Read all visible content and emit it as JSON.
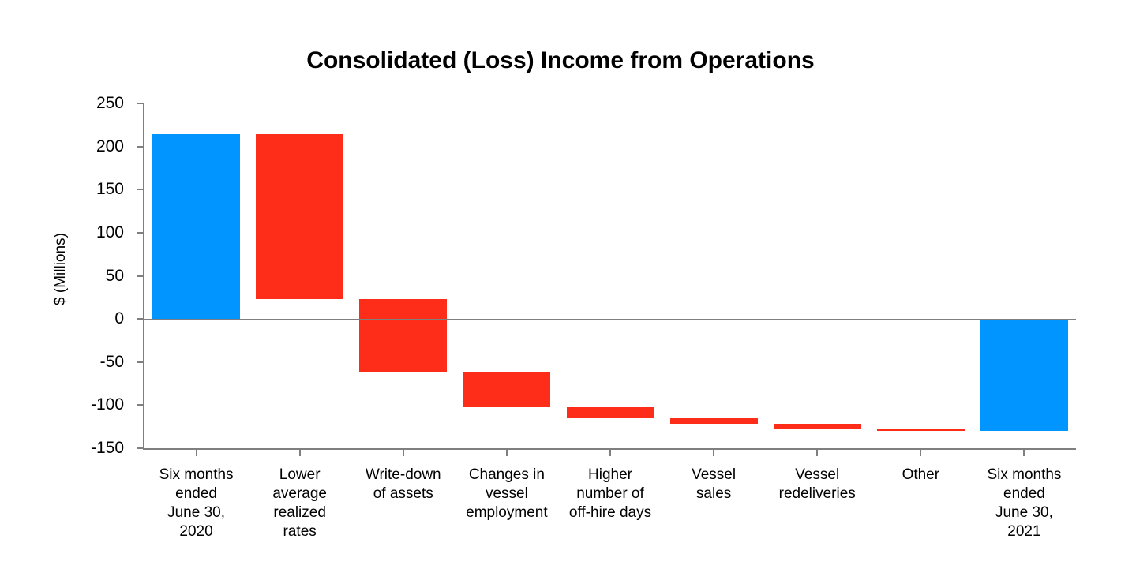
{
  "chart_data": {
    "type": "bar",
    "subtype": "waterfall",
    "title": "Consolidated (Loss) Income from Operations",
    "ylabel": "$ (Millions)",
    "xlabel": "",
    "ylim": [
      -150,
      250
    ],
    "yticks": [
      250,
      200,
      150,
      100,
      50,
      0,
      -50,
      -100,
      -150
    ],
    "grid": false,
    "legend": false,
    "zero_line": true,
    "colors": {
      "total_bar": "#0095FF",
      "decrease_bar": "#FD2D19",
      "axis_line": "#7F7F7F",
      "zero_line": "#7F7F7F",
      "text": "#000000",
      "background": "#FFFFFF"
    },
    "categories": [
      "Six months ended June 30, 2020",
      "Lower average realized rates",
      "Write-down of assets",
      "Changes in vessel employment",
      "Higher number of off-hire days",
      "Vessel sales",
      "Vessel redeliveries",
      "Other",
      "Six months ended June 30, 2021"
    ],
    "bars": [
      {
        "label": "Six months ended June 30, 2020",
        "lines": [
          "Six months",
          "ended",
          "June 30,",
          "2020"
        ],
        "kind": "total",
        "start": 0,
        "end": 214,
        "change": 214
      },
      {
        "label": "Lower average realized rates",
        "lines": [
          "Lower",
          "average",
          "realized",
          "rates"
        ],
        "kind": "decrease",
        "start": 214,
        "end": 23,
        "change": -191
      },
      {
        "label": "Write-down of assets",
        "lines": [
          "Write-down",
          "of assets"
        ],
        "kind": "decrease",
        "start": 23,
        "end": -62,
        "change": -85
      },
      {
        "label": "Changes in vessel employment",
        "lines": [
          "Changes in",
          "vessel",
          "employment"
        ],
        "kind": "decrease",
        "start": -62,
        "end": -102,
        "change": -40
      },
      {
        "label": "Higher number of off-hire days",
        "lines": [
          "Higher",
          "number of",
          "off-hire days"
        ],
        "kind": "decrease",
        "start": -102,
        "end": -115,
        "change": -13
      },
      {
        "label": "Vessel sales",
        "lines": [
          "Vessel",
          "sales"
        ],
        "kind": "decrease",
        "start": -115,
        "end": -122,
        "change": -7
      },
      {
        "label": "Vessel redeliveries",
        "lines": [
          "Vessel",
          "redeliveries"
        ],
        "kind": "decrease",
        "start": -122,
        "end": -128,
        "change": -6
      },
      {
        "label": "Other",
        "lines": [
          "Other"
        ],
        "kind": "decrease",
        "start": -128,
        "end": -130,
        "change": -2
      },
      {
        "label": "Six months ended June 30, 2021",
        "lines": [
          "Six months",
          "ended",
          "June 30,",
          "2021"
        ],
        "kind": "total",
        "start": 0,
        "end": -130,
        "change": -130
      }
    ]
  }
}
